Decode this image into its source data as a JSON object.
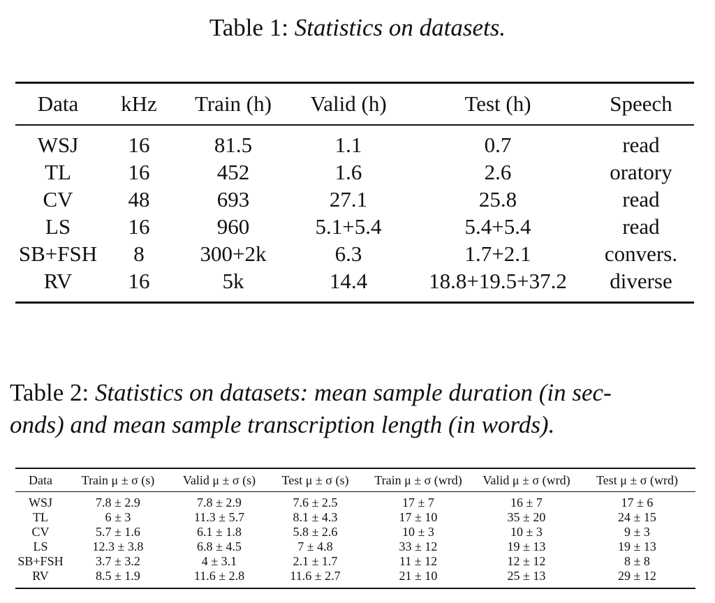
{
  "table1": {
    "caption_label": "Table 1:",
    "caption_text": "Statistics on datasets.",
    "headers": [
      "Data",
      "kHz",
      "Train (h)",
      "Valid (h)",
      "Test (h)",
      "Speech"
    ],
    "rows": [
      [
        "WSJ",
        "16",
        "81.5",
        "1.1",
        "0.7",
        "read"
      ],
      [
        "TL",
        "16",
        "452",
        "1.6",
        "2.6",
        "oratory"
      ],
      [
        "CV",
        "48",
        "693",
        "27.1",
        "25.8",
        "read"
      ],
      [
        "LS",
        "16",
        "960",
        "5.1+5.4",
        "5.4+5.4",
        "read"
      ],
      [
        "SB+FSH",
        "8",
        "300+2k",
        "6.3",
        "1.7+2.1",
        "convers."
      ],
      [
        "RV",
        "16",
        "5k",
        "14.4",
        "18.8+19.5+37.2",
        "diverse"
      ]
    ]
  },
  "table2": {
    "caption_label": "Table 2:",
    "caption_line1": "Statistics on datasets: mean sample duration (in sec-",
    "caption_line2": "onds) and mean sample transcription length (in words).",
    "headers": [
      "Data",
      "Train μ ± σ (s)",
      "Valid μ ± σ (s)",
      "Test μ ± σ (s)",
      "Train μ ± σ (wrd)",
      "Valid μ ± σ (wrd)",
      "Test μ ± σ (wrd)"
    ],
    "rows": [
      [
        "WSJ",
        "7.8 ± 2.9",
        "7.8 ± 2.9",
        "7.6 ± 2.5",
        "17 ± 7",
        "16 ± 7",
        "17 ± 6"
      ],
      [
        "TL",
        "6 ± 3",
        "11.3 ± 5.7",
        "8.1 ± 4.3",
        "17 ± 10",
        "35 ± 20",
        "24 ± 15"
      ],
      [
        "CV",
        "5.7 ± 1.6",
        "6.1 ± 1.8",
        "5.8 ± 2.6",
        "10 ± 3",
        "10 ± 3",
        "9 ± 3"
      ],
      [
        "LS",
        "12.3 ± 3.8",
        "6.8 ± 4.5",
        "7 ± 4.8",
        "33 ± 12",
        "19 ± 13",
        "19 ± 13"
      ],
      [
        "SB+FSH",
        "3.7 ± 3.2",
        "4 ± 3.1",
        "2.1 ± 1.7",
        "11 ± 12",
        "12 ± 12",
        "8 ± 8"
      ],
      [
        "RV",
        "8.5 ± 1.9",
        "11.6 ± 2.8",
        "11.6 ± 2.7",
        "21 ± 10",
        "25 ± 13",
        "29 ± 12"
      ]
    ]
  }
}
